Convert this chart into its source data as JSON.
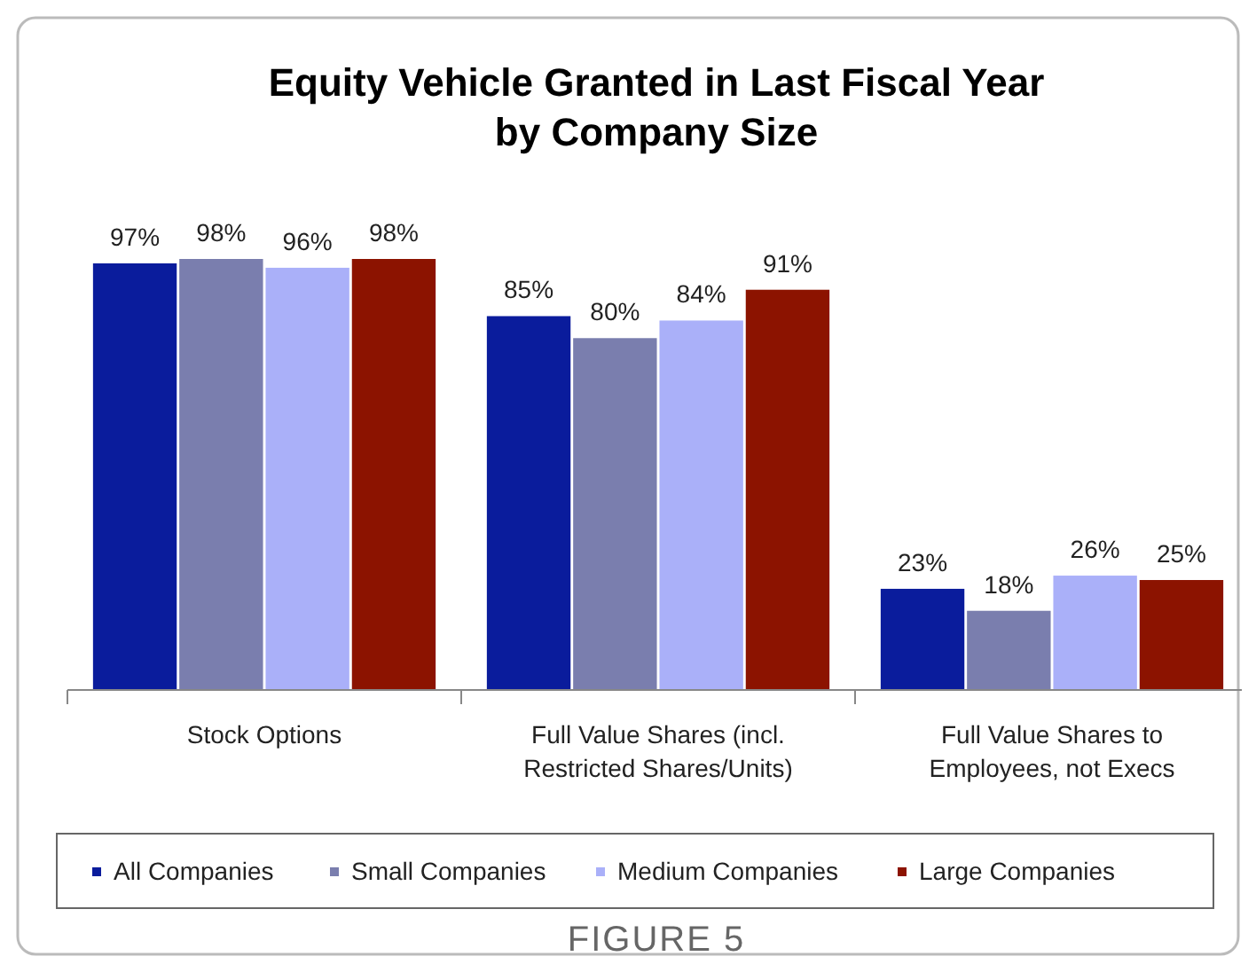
{
  "chart_data": {
    "type": "bar",
    "title": "Equity Vehicle Granted in Last Fiscal Year\nby Company Size",
    "categories": [
      "Stock Options",
      "Full Value Shares (incl. Restricted Shares/Units)",
      "Full Value Shares to Employees, not Execs"
    ],
    "series": [
      {
        "name": "All Companies",
        "color": "#0a1c9c",
        "values": [
          97,
          85,
          23
        ],
        "value_labels": [
          "97%",
          "85%",
          "23%"
        ]
      },
      {
        "name": "Small Companies",
        "color": "#7a7eae",
        "values": [
          98,
          80,
          18
        ],
        "value_labels": [
          "98%",
          "80%",
          "18%"
        ]
      },
      {
        "name": "Medium Companies",
        "color": "#aab0f9",
        "values": [
          96,
          84,
          26
        ],
        "value_labels": [
          "96%",
          "84%",
          "26%"
        ]
      },
      {
        "name": "Large Companies",
        "color": "#8c1300",
        "values": [
          98,
          91,
          25
        ],
        "value_labels": [
          "98%",
          "91%",
          "25%"
        ]
      }
    ],
    "legend": "bottom",
    "annotations": [
      "FIGURE 5"
    ]
  }
}
